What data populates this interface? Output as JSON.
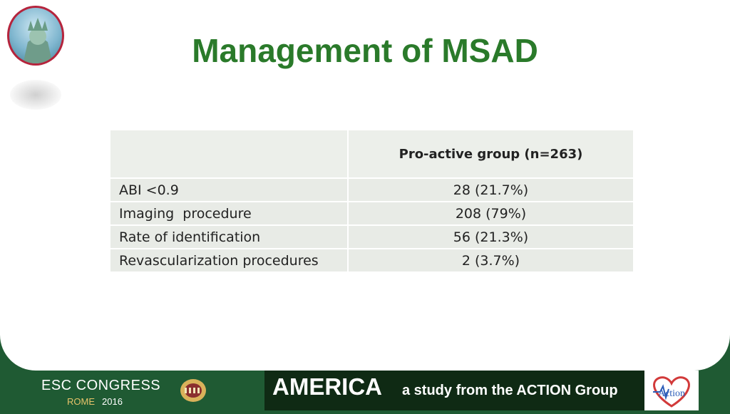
{
  "title": "Management of MSAD",
  "table": {
    "header": [
      "",
      "Pro-active group (n=263)"
    ],
    "rows": [
      [
        "ABI <0.9",
        "28 (21.7%)"
      ],
      [
        "Imaging  procedure",
        "208 (79%)"
      ],
      [
        "Rate of identification",
        "56 (21.3%)"
      ],
      [
        "Revascularization procedures",
        "2 (3.7%)"
      ]
    ]
  },
  "footer": {
    "esc_title": "ESC CONGRESS",
    "esc_city": "ROME",
    "esc_year": "2016",
    "america_title": "AMERICA",
    "america_subtitle": "a study from the ACTION Group",
    "action_logo_text": "Action"
  },
  "colors": {
    "title_green": "#2a7a2a",
    "footer_green": "#1f5a33",
    "table_fill": "#e8ebe6"
  },
  "icons": {
    "statue_logo": "statue-of-liberty-icon",
    "colosseum_logo": "colosseum-icon",
    "action_logo": "heart-ecg-icon"
  }
}
